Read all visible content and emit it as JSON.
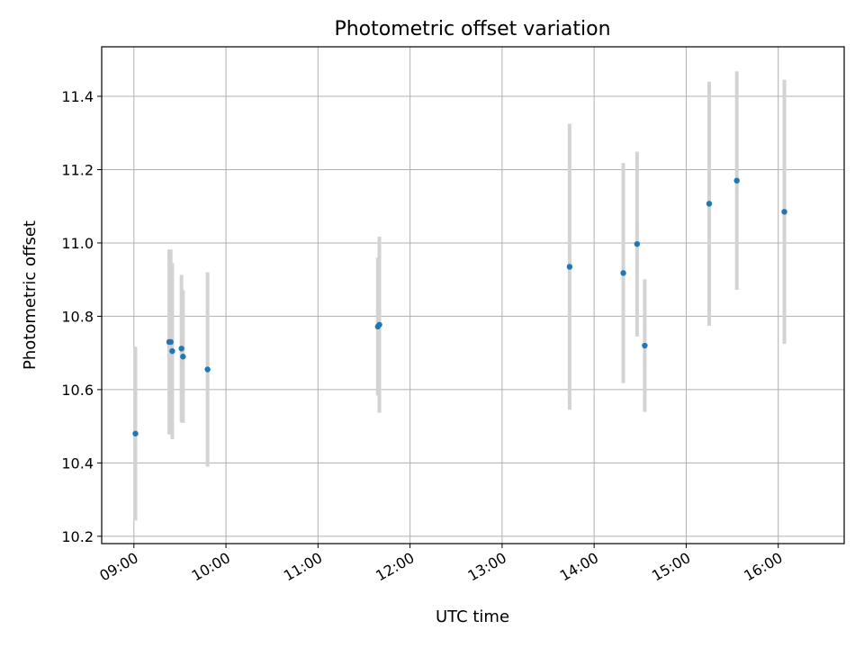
{
  "chart_data": {
    "type": "scatter",
    "title": "Photometric offset variation",
    "xlabel": "UTC time",
    "ylabel": "Photometric offset",
    "x_unit": "time of day (HH:MM)",
    "xlim": [
      "08:39",
      "16:43"
    ],
    "ylim": [
      10.18,
      11.535
    ],
    "x_ticks": [
      "09:00",
      "10:00",
      "11:00",
      "12:00",
      "13:00",
      "14:00",
      "15:00",
      "16:00"
    ],
    "y_ticks": [
      10.2,
      10.4,
      10.6,
      10.8,
      11.0,
      11.2,
      11.4
    ],
    "y_tick_labels": [
      "10.2",
      "10.4",
      "10.6",
      "10.8",
      "11.0",
      "11.2",
      "11.4"
    ],
    "grid": true,
    "marker_color": "#1f77b4",
    "errorbar_color": "#d3d3d3",
    "points": [
      {
        "x": "09:01",
        "y": 10.48,
        "err": 0.237
      },
      {
        "x": "09:23",
        "y": 10.73,
        "err": 0.252
      },
      {
        "x": "09:24",
        "y": 10.73,
        "err": 0.252
      },
      {
        "x": "09:25",
        "y": 10.705,
        "err": 0.24
      },
      {
        "x": "09:31",
        "y": 10.712,
        "err": 0.201
      },
      {
        "x": "09:32",
        "y": 10.69,
        "err": 0.181
      },
      {
        "x": "09:48",
        "y": 10.655,
        "err": 0.265
      },
      {
        "x": "11:39",
        "y": 10.772,
        "err": 0.188
      },
      {
        "x": "11:40",
        "y": 10.777,
        "err": 0.24
      },
      {
        "x": "13:44",
        "y": 10.935,
        "err": 0.39
      },
      {
        "x": "14:19",
        "y": 10.918,
        "err": 0.3
      },
      {
        "x": "14:28",
        "y": 10.997,
        "err": 0.252
      },
      {
        "x": "14:33",
        "y": 10.72,
        "err": 0.181
      },
      {
        "x": "15:15",
        "y": 11.107,
        "err": 0.333
      },
      {
        "x": "15:33",
        "y": 11.17,
        "err": 0.298
      },
      {
        "x": "16:04",
        "y": 11.085,
        "err": 0.36
      }
    ]
  }
}
